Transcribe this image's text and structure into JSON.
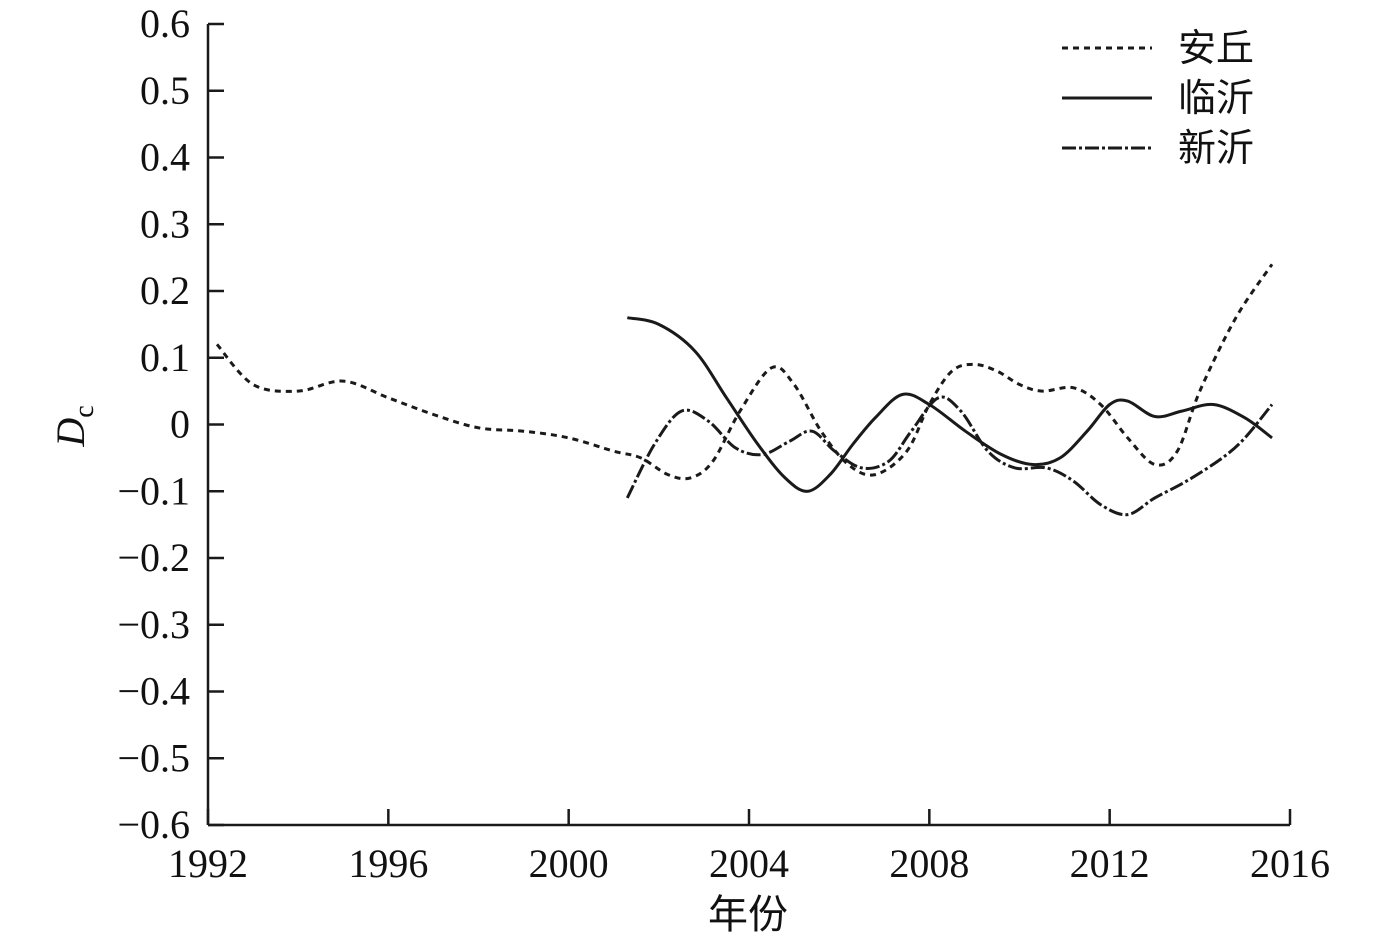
{
  "chart_data": {
    "type": "line",
    "title": "",
    "xlabel": "年份",
    "ylabel_main": "D",
    "ylabel_sub": "c",
    "xlim": [
      1992,
      2016
    ],
    "ylim": [
      -0.6,
      0.6
    ],
    "x_ticks": [
      "1992",
      "1996",
      "2000",
      "2004",
      "2008",
      "2012",
      "2016"
    ],
    "y_ticks": [
      "0.6",
      "0.5",
      "0.4",
      "0.3",
      "0.2",
      "0.1",
      "0",
      "−0.1",
      "−0.2",
      "−0.3",
      "−0.4",
      "−0.5",
      "−0.6"
    ],
    "grid": false,
    "legend_position": "top-right",
    "series": [
      {
        "name": "安丘",
        "style": "dotted",
        "color": "#1a1a1a",
        "points": [
          [
            1992.2,
            0.12
          ],
          [
            1993.0,
            0.06
          ],
          [
            1994.0,
            0.05
          ],
          [
            1995.0,
            0.065
          ],
          [
            1996.0,
            0.04
          ],
          [
            1997.0,
            0.015
          ],
          [
            1998.0,
            -0.005
          ],
          [
            1999.0,
            -0.01
          ],
          [
            2000.0,
            -0.02
          ],
          [
            2001.0,
            -0.04
          ],
          [
            2001.6,
            -0.05
          ],
          [
            2002.2,
            -0.075
          ],
          [
            2002.7,
            -0.08
          ],
          [
            2003.2,
            -0.055
          ],
          [
            2003.8,
            0.02
          ],
          [
            2004.5,
            0.085
          ],
          [
            2005.0,
            0.06
          ],
          [
            2005.6,
            -0.01
          ],
          [
            2006.2,
            -0.06
          ],
          [
            2006.8,
            -0.075
          ],
          [
            2007.5,
            -0.04
          ],
          [
            2008.0,
            0.03
          ],
          [
            2008.5,
            0.08
          ],
          [
            2009.0,
            0.09
          ],
          [
            2009.5,
            0.08
          ],
          [
            2010.0,
            0.06
          ],
          [
            2010.5,
            0.05
          ],
          [
            2011.2,
            0.055
          ],
          [
            2011.8,
            0.03
          ],
          [
            2012.4,
            -0.02
          ],
          [
            2013.0,
            -0.06
          ],
          [
            2013.5,
            -0.04
          ],
          [
            2014.0,
            0.05
          ],
          [
            2014.8,
            0.16
          ],
          [
            2015.6,
            0.24
          ]
        ]
      },
      {
        "name": "临沂",
        "style": "solid",
        "color": "#1a1a1a",
        "points": [
          [
            2001.3,
            0.16
          ],
          [
            2002.0,
            0.15
          ],
          [
            2002.8,
            0.11
          ],
          [
            2003.5,
            0.04
          ],
          [
            2004.2,
            -0.03
          ],
          [
            2004.8,
            -0.08
          ],
          [
            2005.3,
            -0.1
          ],
          [
            2005.8,
            -0.075
          ],
          [
            2006.3,
            -0.03
          ],
          [
            2006.8,
            0.01
          ],
          [
            2007.4,
            0.045
          ],
          [
            2008.0,
            0.03
          ],
          [
            2008.8,
            -0.01
          ],
          [
            2009.6,
            -0.045
          ],
          [
            2010.3,
            -0.06
          ],
          [
            2010.9,
            -0.05
          ],
          [
            2011.5,
            -0.01
          ],
          [
            2012.0,
            0.03
          ],
          [
            2012.4,
            0.035
          ],
          [
            2013.0,
            0.012
          ],
          [
            2013.6,
            0.02
          ],
          [
            2014.3,
            0.03
          ],
          [
            2015.0,
            0.01
          ],
          [
            2015.6,
            -0.02
          ]
        ]
      },
      {
        "name": "新沂",
        "style": "dashdot",
        "color": "#1a1a1a",
        "points": [
          [
            2001.3,
            -0.11
          ],
          [
            2001.9,
            -0.03
          ],
          [
            2002.5,
            0.02
          ],
          [
            2003.1,
            0.005
          ],
          [
            2003.7,
            -0.035
          ],
          [
            2004.3,
            -0.045
          ],
          [
            2004.9,
            -0.025
          ],
          [
            2005.4,
            -0.01
          ],
          [
            2005.9,
            -0.04
          ],
          [
            2006.5,
            -0.065
          ],
          [
            2007.1,
            -0.055
          ],
          [
            2007.6,
            -0.01
          ],
          [
            2008.2,
            0.04
          ],
          [
            2008.7,
            0.02
          ],
          [
            2009.3,
            -0.04
          ],
          [
            2009.9,
            -0.065
          ],
          [
            2010.6,
            -0.065
          ],
          [
            2011.2,
            -0.085
          ],
          [
            2011.8,
            -0.12
          ],
          [
            2012.4,
            -0.135
          ],
          [
            2013.0,
            -0.11
          ],
          [
            2013.7,
            -0.085
          ],
          [
            2014.5,
            -0.05
          ],
          [
            2015.0,
            -0.02
          ],
          [
            2015.6,
            0.03
          ]
        ]
      }
    ]
  }
}
